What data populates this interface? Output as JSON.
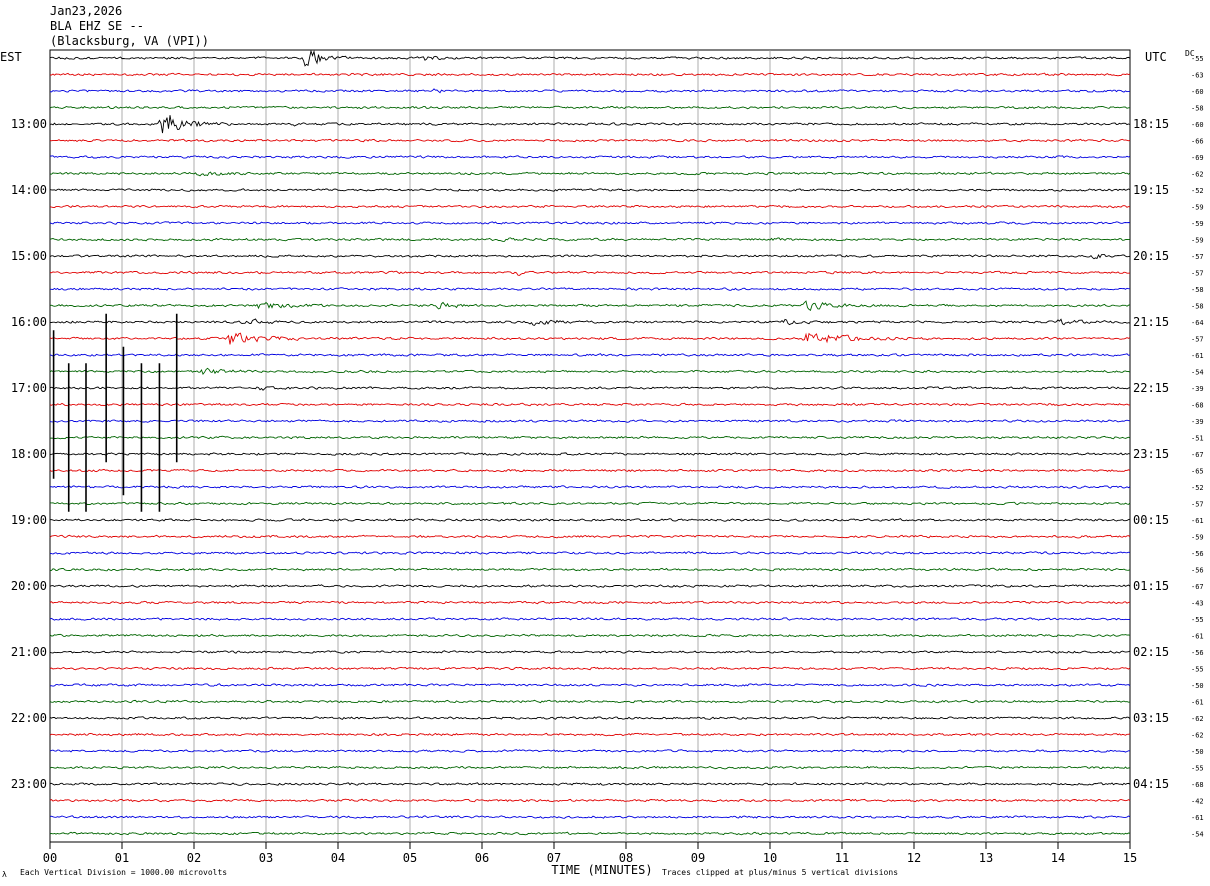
{
  "header": {
    "date": "Jan23,2026",
    "station": "BLA EHZ SE --",
    "location": "(Blacksburg, VA (VPI))"
  },
  "left_axis_label": "EST",
  "right_axis_label": "UTC",
  "dc_label": "DC",
  "footer": {
    "scale_note": "Each Vertical Division = 1000.00 microvolts",
    "clip_note": "Traces clipped at plus/minus 5 vertical divisions",
    "corner_mark": "λ"
  },
  "colors": [
    "#000000",
    "#e00000",
    "#0000e0",
    "#006400"
  ],
  "chart_data": {
    "type": "line",
    "xlabel": "TIME (MINUTES)",
    "x_ticks": [
      "00",
      "01",
      "02",
      "03",
      "04",
      "05",
      "06",
      "07",
      "08",
      "09",
      "10",
      "11",
      "12",
      "13",
      "14",
      "15"
    ],
    "xlim": [
      0,
      15
    ],
    "trace_count": 48,
    "est_hour_labels": [
      {
        "trace": 4,
        "label": "13:00"
      },
      {
        "trace": 8,
        "label": "14:00"
      },
      {
        "trace": 12,
        "label": "15:00"
      },
      {
        "trace": 16,
        "label": "16:00"
      },
      {
        "trace": 20,
        "label": "17:00"
      },
      {
        "trace": 24,
        "label": "18:00"
      },
      {
        "trace": 28,
        "label": "19:00"
      },
      {
        "trace": 32,
        "label": "20:00"
      },
      {
        "trace": 36,
        "label": "21:00"
      },
      {
        "trace": 40,
        "label": "22:00"
      },
      {
        "trace": 44,
        "label": "23:00"
      }
    ],
    "utc_hour_labels": [
      {
        "trace": 4,
        "label": "18:15"
      },
      {
        "trace": 8,
        "label": "19:15"
      },
      {
        "trace": 12,
        "label": "20:15"
      },
      {
        "trace": 16,
        "label": "21:15"
      },
      {
        "trace": 20,
        "label": "22:15"
      },
      {
        "trace": 24,
        "label": "23:15"
      },
      {
        "trace": 28,
        "label": "00:15"
      },
      {
        "trace": 32,
        "label": "01:15"
      },
      {
        "trace": 36,
        "label": "02:15"
      },
      {
        "trace": 40,
        "label": "03:15"
      },
      {
        "trace": 44,
        "label": "04:15"
      }
    ],
    "dc_offsets": [
      "-55",
      "-63",
      "-60",
      "-58",
      "-60",
      "-66",
      "-69",
      "-62",
      "-52",
      "-59",
      "-59",
      "-59",
      "-57",
      "-57",
      "-58",
      "-58",
      "-64",
      "-57",
      "-61",
      "-54",
      "-39",
      "-68",
      "-39",
      "-51",
      "-67",
      "-65",
      "-52",
      "-57",
      "-61",
      "-59",
      "-56",
      "-56",
      "-67",
      "-43",
      "-55",
      "-61",
      "-56",
      "-55",
      "-50",
      "-61",
      "-62",
      "-62",
      "-50",
      "-55",
      "-68",
      "-42",
      "-61",
      "-54"
    ],
    "events": [
      {
        "trace": 0,
        "minute": 3.55,
        "amplitude": 3.5,
        "duration": 0.4
      },
      {
        "trace": 0,
        "minute": 5.2,
        "amplitude": 0.5,
        "duration": 0.3
      },
      {
        "trace": 1,
        "minute": 4.2,
        "amplitude": 0.35,
        "duration": 0.3
      },
      {
        "trace": 2,
        "minute": 5.3,
        "amplitude": 0.4,
        "duration": 0.4
      },
      {
        "trace": 4,
        "minute": 1.55,
        "amplitude": 5.0,
        "duration": 0.5
      },
      {
        "trace": 4,
        "minute": 3.4,
        "amplitude": 0.4,
        "duration": 0.2
      },
      {
        "trace": 7,
        "minute": 2.05,
        "amplitude": 0.6,
        "duration": 0.5
      },
      {
        "trace": 11,
        "minute": 6.3,
        "amplitude": 0.3,
        "duration": 0.4
      },
      {
        "trace": 11,
        "minute": 10.0,
        "amplitude": 0.5,
        "duration": 0.3
      },
      {
        "trace": 12,
        "minute": 14.5,
        "amplitude": 0.5,
        "duration": 0.5
      },
      {
        "trace": 13,
        "minute": 6.5,
        "amplitude": 0.6,
        "duration": 0.1
      },
      {
        "trace": 15,
        "minute": 2.9,
        "amplitude": 0.9,
        "duration": 0.7
      },
      {
        "trace": 15,
        "minute": 5.4,
        "amplitude": 0.8,
        "duration": 0.5
      },
      {
        "trace": 15,
        "minute": 10.5,
        "amplitude": 1.1,
        "duration": 0.7
      },
      {
        "trace": 16,
        "minute": 2.7,
        "amplitude": 0.9,
        "duration": 0.5
      },
      {
        "trace": 16,
        "minute": 6.7,
        "amplitude": 0.8,
        "duration": 0.6
      },
      {
        "trace": 16,
        "minute": 10.2,
        "amplitude": 0.6,
        "duration": 0.5
      },
      {
        "trace": 16,
        "minute": 14.0,
        "amplitude": 0.8,
        "duration": 0.6
      },
      {
        "trace": 17,
        "minute": 2.5,
        "amplitude": 1.8,
        "duration": 0.8
      },
      {
        "trace": 17,
        "minute": 10.5,
        "amplitude": 1.8,
        "duration": 1.0
      },
      {
        "trace": 19,
        "minute": 2.1,
        "amplitude": 0.9,
        "duration": 0.6
      },
      {
        "trace": 20,
        "minute": 2.9,
        "amplitude": 0.5,
        "duration": 0.4
      }
    ],
    "spikes": [
      {
        "trace": 20,
        "minute": 0.78,
        "amplitude": 5.0
      },
      {
        "trace": 20,
        "minute": 1.76,
        "amplitude": 5.0
      },
      {
        "trace": 21,
        "minute": 0.05,
        "amplitude": 5.0
      },
      {
        "trace": 22,
        "minute": 1.02,
        "amplitude": 5.0
      },
      {
        "trace": 23,
        "minute": 0.26,
        "amplitude": 5.0
      },
      {
        "trace": 23,
        "minute": 0.5,
        "amplitude": 5.0
      },
      {
        "trace": 23,
        "minute": 1.27,
        "amplitude": 5.0
      },
      {
        "trace": 23,
        "minute": 1.52,
        "amplitude": 5.0
      }
    ]
  }
}
